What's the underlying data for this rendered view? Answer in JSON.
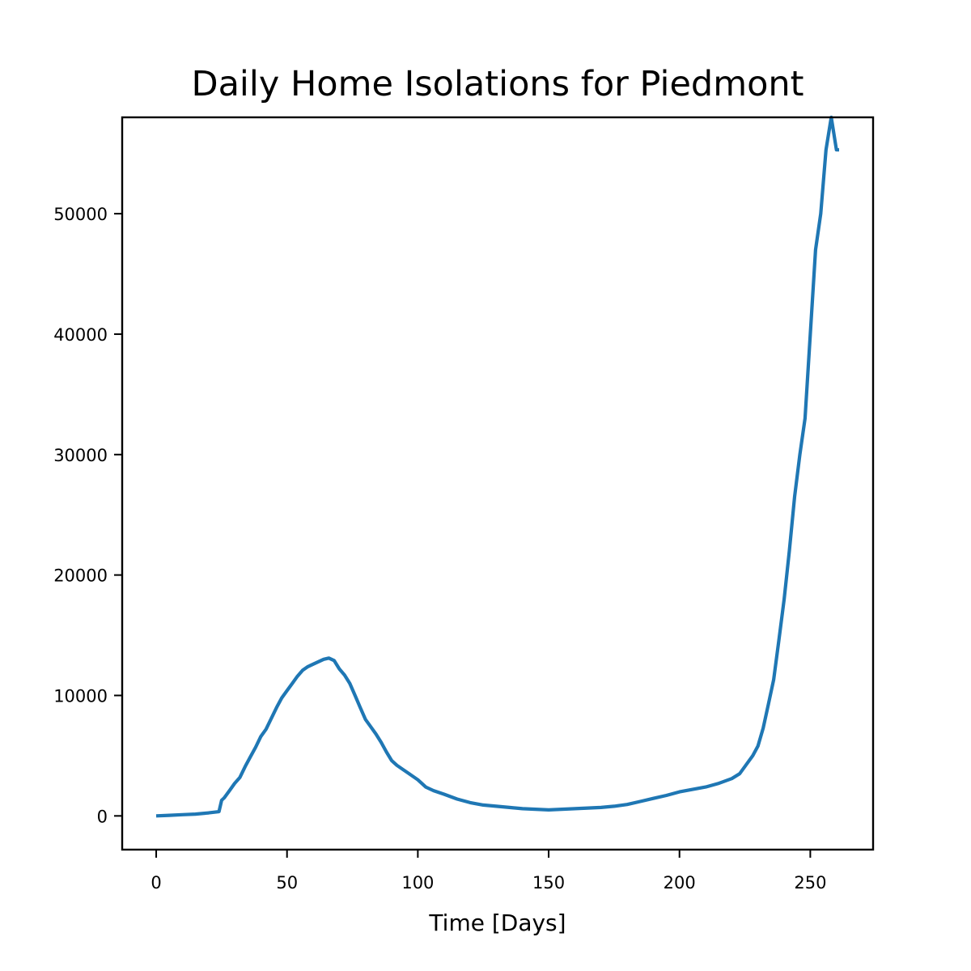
{
  "chart_data": {
    "type": "line",
    "title": "Daily Home Isolations for Piedmont",
    "xlabel": "Time [Days]",
    "ylabel": "",
    "xlim": [
      -13,
      274
    ],
    "ylim": [
      -2800,
      58000
    ],
    "xticks": [
      0,
      50,
      100,
      150,
      200,
      250
    ],
    "yticks": [
      0,
      10000,
      20000,
      30000,
      40000,
      50000
    ],
    "grid": false,
    "legend": "none",
    "series": [
      {
        "color": "#1f77b4",
        "x": [
          0,
          5,
          10,
          15,
          20,
          24,
          25,
          26,
          28,
          30,
          32,
          34,
          36,
          38,
          40,
          42,
          44,
          46,
          48,
          50,
          52,
          54,
          56,
          58,
          60,
          62,
          64,
          66,
          68,
          70,
          72,
          74,
          76,
          78,
          80,
          82,
          84,
          86,
          88,
          90,
          92,
          94,
          96,
          98,
          100,
          103,
          106,
          110,
          115,
          120,
          125,
          130,
          135,
          140,
          145,
          150,
          155,
          160,
          165,
          170,
          175,
          180,
          185,
          190,
          195,
          200,
          205,
          210,
          215,
          220,
          223,
          226,
          228,
          230,
          232,
          234,
          236,
          238,
          240,
          242,
          244,
          246,
          248,
          250,
          252,
          254,
          256,
          258,
          260,
          261
        ],
        "values": [
          0,
          50,
          100,
          150,
          250,
          350,
          1300,
          1500,
          2100,
          2700,
          3200,
          4100,
          4900,
          5700,
          6600,
          7200,
          8100,
          9000,
          9800,
          10400,
          11000,
          11600,
          12100,
          12400,
          12600,
          12800,
          13000,
          13100,
          12900,
          12200,
          11700,
          11000,
          10000,
          9000,
          8000,
          7400,
          6800,
          6100,
          5300,
          4600,
          4200,
          3900,
          3600,
          3300,
          3000,
          2400,
          2100,
          1800,
          1400,
          1100,
          900,
          800,
          700,
          600,
          550,
          500,
          550,
          600,
          650,
          700,
          800,
          950,
          1200,
          1450,
          1700,
          2000,
          2200,
          2400,
          2700,
          3100,
          3500,
          4400,
          5000,
          5800,
          7300,
          9300,
          11300,
          14600,
          18000,
          22000,
          26500,
          30000,
          33000,
          40000,
          47000,
          50000,
          55300,
          58000,
          55300,
          55300
        ]
      }
    ]
  }
}
